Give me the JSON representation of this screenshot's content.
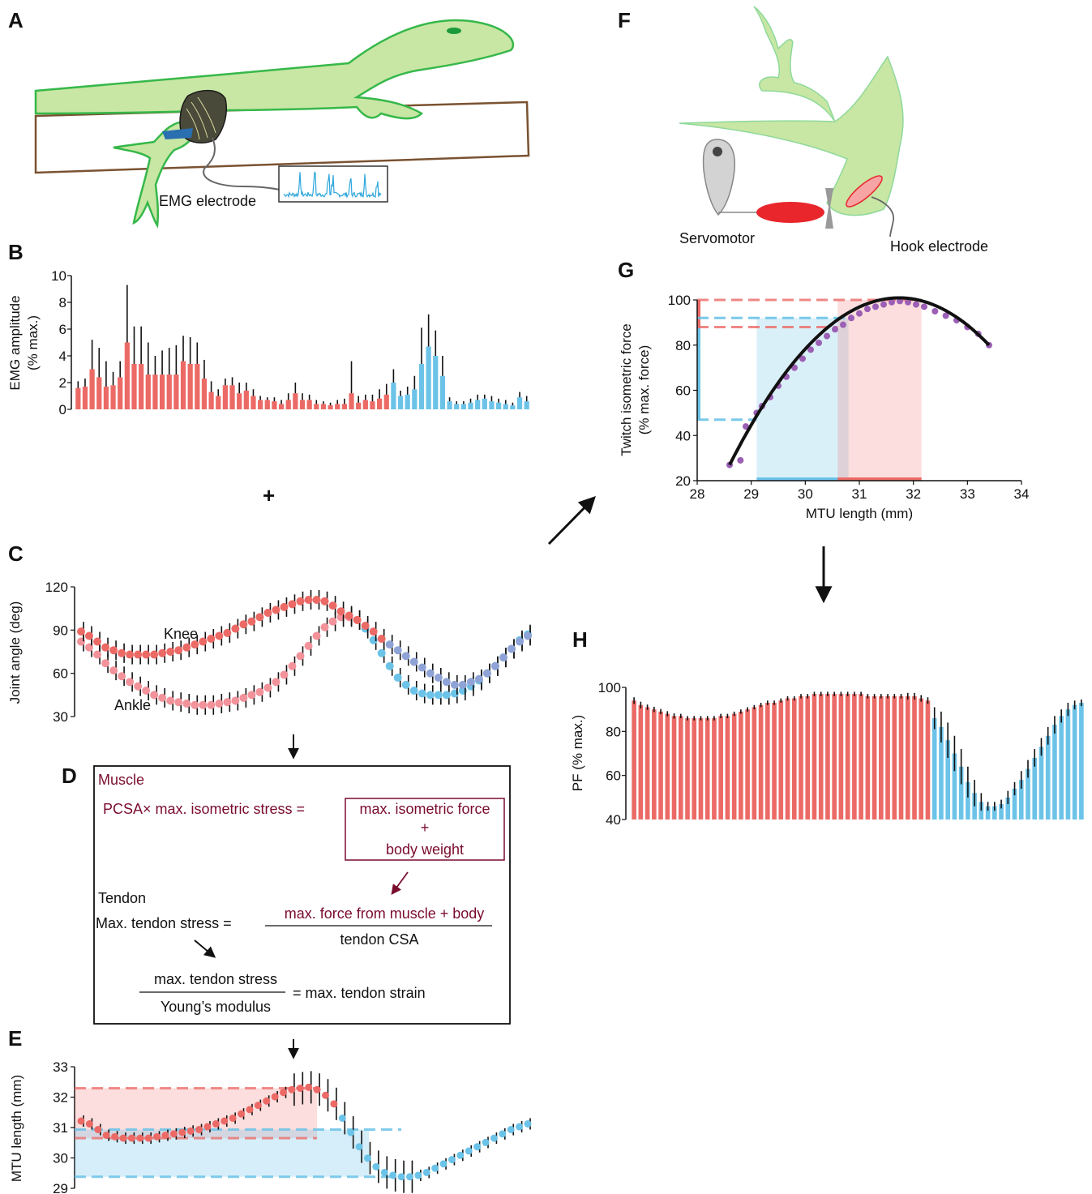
{
  "colors": {
    "stance": "#ec6a66",
    "swing": "#6cc3e8",
    "ankle_stance": "#f2929a",
    "knee_swing": "#8fa3d6",
    "maroon": "#7a0c2e",
    "purple": "#9b5fb5",
    "lizard": "#c8e6a4",
    "lizard_edge": "#36b84a",
    "motor_red": "#e8262c"
  },
  "panels": {
    "A": "A",
    "B": "B",
    "C": "C",
    "D": "D",
    "E": "E",
    "F": "F",
    "G": "G",
    "H": "H"
  },
  "panel_a": {
    "electrode_label": "EMG electrode"
  },
  "panel_f": {
    "servo_label": "Servomotor",
    "hook_label": "Hook electrode"
  },
  "plus": "+",
  "panel_d": {
    "muscle_heading": "Muscle",
    "muscle_eq_left": "PCSA× max. isometric stress =",
    "box_line1": "max. isometric force",
    "box_line2": "+",
    "box_line3": "body weight",
    "tendon_heading": "Tendon",
    "tendon_eq_left": "Max. tendon stress =",
    "tendon_num": "max. force from muscle + body",
    "tendon_den": "tendon CSA",
    "strain_num": "max. tendon stress",
    "strain_den": "Young’s modulus",
    "strain_right": "= max. tendon strain"
  },
  "chart_data": [
    {
      "id": "B",
      "type": "bar",
      "ylabel": "EMG amplitude",
      "ylabel2": "(% max.)",
      "ylim": [
        0,
        10
      ],
      "yticks": [
        0,
        2,
        4,
        6,
        8,
        10
      ],
      "values": [
        1.6,
        1.7,
        3.0,
        2.4,
        1.7,
        1.8,
        2.4,
        5.0,
        3.4,
        3.4,
        2.6,
        2.6,
        2.6,
        2.6,
        2.6,
        3.6,
        3.4,
        3.4,
        2.3,
        1.3,
        1.0,
        1.8,
        1.8,
        1.2,
        1.4,
        1.0,
        0.7,
        0.7,
        0.6,
        0.4,
        0.7,
        1.2,
        0.7,
        0.7,
        0.4,
        0.4,
        0.3,
        0.4,
        0.4,
        1.2,
        0.5,
        0.7,
        0.6,
        0.8,
        1.1,
        2.0,
        1.0,
        1.1,
        1.5,
        3.4,
        4.7,
        4.0,
        2.5,
        0.6,
        0.4,
        0.4,
        0.5,
        0.7,
        0.8,
        0.6,
        0.5,
        0.4,
        0.3,
        0.9,
        0.6
      ],
      "errors": [
        0.5,
        0.6,
        2.2,
        2.2,
        1.9,
        1.0,
        1.2,
        4.3,
        2.8,
        2.8,
        2.4,
        1.4,
        1.8,
        2.0,
        2.2,
        1.9,
        2.0,
        1.6,
        1.4,
        0.8,
        0.5,
        0.5,
        0.6,
        0.8,
        0.6,
        0.5,
        0.3,
        0.2,
        0.3,
        0.3,
        0.5,
        0.8,
        0.5,
        0.4,
        0.3,
        0.2,
        0.2,
        0.3,
        0.4,
        2.4,
        0.5,
        0.4,
        0.5,
        0.7,
        0.8,
        1.0,
        0.4,
        0.6,
        1.0,
        2.7,
        2.4,
        1.9,
        1.5,
        0.3,
        0.2,
        0.2,
        0.3,
        0.4,
        0.3,
        0.4,
        0.3,
        0.3,
        0.2,
        0.4,
        0.4
      ],
      "stance_count": 45
    },
    {
      "id": "C",
      "type": "scatter",
      "ylabel": "Joint angle (deg)",
      "ylim": [
        30,
        120
      ],
      "yticks": [
        30,
        60,
        90,
        120
      ],
      "series": [
        {
          "name": "Knee",
          "values": [
            89,
            86,
            82,
            78,
            76,
            74,
            73,
            73,
            73,
            73,
            74,
            75,
            76,
            78,
            80,
            82,
            84,
            86,
            88,
            91,
            94,
            96,
            99,
            102,
            104,
            106,
            108,
            110,
            111,
            111,
            110,
            107,
            103,
            100,
            97,
            93,
            89,
            84,
            80,
            76,
            72,
            68,
            64,
            60,
            57,
            54,
            52,
            52,
            54,
            56,
            60,
            65,
            71,
            77,
            82,
            86
          ],
          "stance_count": 38
        },
        {
          "name": "Ankle",
          "values": [
            82,
            78,
            73,
            67,
            62,
            58,
            54,
            51,
            48,
            45,
            43,
            41,
            40,
            39,
            38,
            38,
            38,
            39,
            40,
            41,
            43,
            45,
            47,
            50,
            54,
            59,
            65,
            72,
            79,
            86,
            92,
            96,
            99,
            99,
            97,
            91,
            83,
            74,
            65,
            57,
            52,
            48,
            46,
            45,
            45,
            45,
            46,
            48,
            51,
            55,
            60,
            65,
            71,
            77,
            83,
            87
          ],
          "stance_count": 35
        }
      ]
    },
    {
      "id": "E",
      "type": "scatter",
      "ylabel": "MTU length (mm)",
      "ylim": [
        29,
        33
      ],
      "yticks": [
        29,
        30,
        31,
        32,
        33
      ],
      "values": [
        31.1,
        31.0,
        30.8,
        30.6,
        30.55,
        30.5,
        30.5,
        30.5,
        30.5,
        30.55,
        30.6,
        30.65,
        30.7,
        30.75,
        30.8,
        30.9,
        31.0,
        31.1,
        31.2,
        31.35,
        31.5,
        31.65,
        31.8,
        31.95,
        32.1,
        32.2,
        32.25,
        32.28,
        32.2,
        32.0,
        31.7,
        31.2,
        30.7,
        30.2,
        29.8,
        29.5,
        29.3,
        29.2,
        29.15,
        29.15,
        29.2,
        29.3,
        29.45,
        29.6,
        29.75,
        29.9,
        30.05,
        30.2,
        30.35,
        30.5,
        30.65,
        30.8,
        30.9,
        31.0
      ],
      "stance_count": 31,
      "stance_range": [
        30.5,
        32.25
      ],
      "swing_range": [
        29.15,
        30.8
      ]
    },
    {
      "id": "G",
      "type": "scatter",
      "xlabel": "MTU length (mm)",
      "ylabel": "Twitch isometric force",
      "ylabel2": "(% max. force)",
      "xlim": [
        28,
        34
      ],
      "ylim": [
        20,
        100
      ],
      "xticks": [
        28,
        29,
        30,
        31,
        32,
        33,
        34
      ],
      "yticks": [
        20,
        40,
        60,
        80,
        100
      ],
      "points": [
        [
          28.6,
          27
        ],
        [
          28.8,
          29
        ],
        [
          28.9,
          44
        ],
        [
          29.1,
          50
        ],
        [
          29.2,
          53
        ],
        [
          29.35,
          57
        ],
        [
          29.5,
          62
        ],
        [
          29.65,
          66
        ],
        [
          29.8,
          70
        ],
        [
          29.95,
          74
        ],
        [
          30.1,
          78
        ],
        [
          30.25,
          81
        ],
        [
          30.4,
          84
        ],
        [
          30.55,
          87
        ],
        [
          30.7,
          89
        ],
        [
          30.85,
          92
        ],
        [
          31.0,
          94
        ],
        [
          31.15,
          96
        ],
        [
          31.3,
          97
        ],
        [
          31.45,
          98
        ],
        [
          31.6,
          99
        ],
        [
          31.75,
          99.5
        ],
        [
          31.9,
          99
        ],
        [
          32.05,
          98
        ],
        [
          32.2,
          97
        ],
        [
          32.4,
          95
        ],
        [
          32.6,
          93
        ],
        [
          32.8,
          91
        ],
        [
          33.0,
          88
        ],
        [
          33.2,
          85
        ],
        [
          33.4,
          80
        ]
      ],
      "fit_range": [
        28.6,
        33.4
      ],
      "stance_x": [
        30.6,
        32.15
      ],
      "stance_y": [
        88,
        100
      ],
      "swing_x": [
        29.1,
        30.8
      ],
      "swing_y": [
        47,
        92
      ]
    },
    {
      "id": "H",
      "type": "bar",
      "ylabel": "PF (% max.)",
      "ylim": [
        40,
        100
      ],
      "yticks": [
        40,
        60,
        80,
        100
      ],
      "values": [
        94,
        92,
        91,
        90,
        89,
        88,
        87,
        87,
        86,
        86,
        86,
        86,
        86,
        87,
        87,
        88,
        89,
        90,
        91,
        92,
        93,
        93,
        94,
        95,
        95,
        96,
        96,
        97,
        97,
        97,
        97,
        97,
        97,
        97,
        97,
        96,
        96,
        96,
        96,
        96,
        96,
        96,
        96,
        95,
        94,
        86,
        82,
        76,
        70,
        64,
        57,
        52,
        48,
        46,
        46,
        47,
        50,
        54,
        58,
        63,
        68,
        73,
        78,
        83,
        87,
        90,
        92,
        93
      ],
      "errors": [
        1.5,
        1.5,
        1.2,
        1.2,
        1.2,
        1.2,
        1.2,
        1.0,
        1.0,
        1.0,
        1.0,
        1.0,
        1.0,
        1.0,
        1.0,
        1.0,
        1.0,
        1.0,
        1.0,
        1.0,
        1.0,
        1.0,
        1.0,
        1.0,
        1.0,
        1.0,
        1.0,
        1.0,
        1.0,
        1.0,
        1.0,
        1.0,
        1.0,
        1.0,
        1.0,
        1.0,
        1.0,
        1.0,
        1.0,
        1.0,
        1.0,
        1.5,
        1.5,
        1.5,
        1.5,
        5,
        7,
        8,
        8,
        8,
        7,
        6,
        4,
        2,
        2,
        2,
        3,
        3,
        4,
        4,
        4,
        4,
        4,
        4,
        3,
        3,
        2,
        1.5
      ],
      "stance_count": 45
    }
  ]
}
